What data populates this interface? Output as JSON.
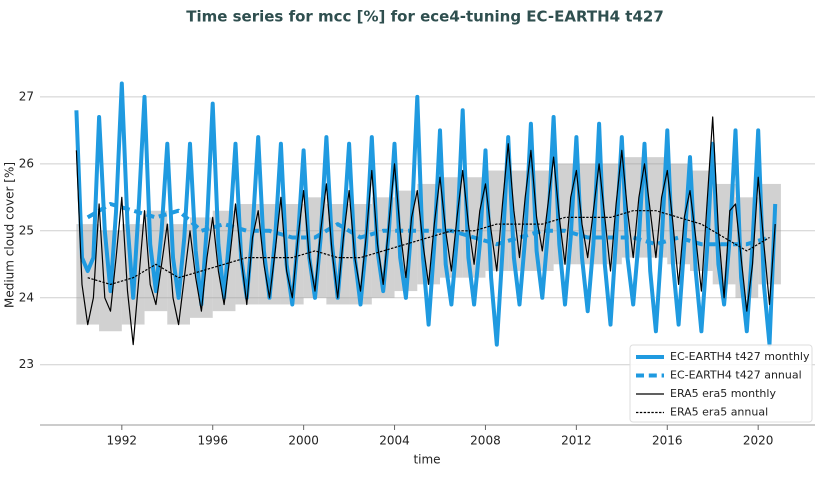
{
  "chart_data": {
    "type": "line",
    "title": "Time series for mcc [%] for ece4-tuning EC-EARTH4 t427",
    "xlabel": "time",
    "ylabel": "Medium cloud cover [%]",
    "xlim": [
      1988.4,
      2022.5
    ],
    "ylim": [
      22.1,
      27.7
    ],
    "xticks": [
      1992,
      1996,
      2000,
      2004,
      2008,
      2012,
      2016,
      2020
    ],
    "yticks": [
      23,
      24,
      25,
      26,
      27
    ],
    "grid": true,
    "legend": "lower right",
    "x": [
      1990,
      1990.25,
      1990.5,
      1990.75,
      1991,
      1991.25,
      1991.5,
      1991.75,
      1992,
      1992.25,
      1992.5,
      1992.75,
      1993,
      1993.25,
      1993.5,
      1993.75,
      1994,
      1994.25,
      1994.5,
      1994.75,
      1995,
      1995.25,
      1995.5,
      1995.75,
      1996,
      1996.25,
      1996.5,
      1996.75,
      1997,
      1997.25,
      1997.5,
      1997.75,
      1998,
      1998.25,
      1998.5,
      1998.75,
      1999,
      1999.25,
      1999.5,
      1999.75,
      2000,
      2000.25,
      2000.5,
      2000.75,
      2001,
      2001.25,
      2001.5,
      2001.75,
      2002,
      2002.25,
      2002.5,
      2002.75,
      2003,
      2003.25,
      2003.5,
      2003.75,
      2004,
      2004.25,
      2004.5,
      2004.75,
      2005,
      2005.25,
      2005.5,
      2005.75,
      2006,
      2006.25,
      2006.5,
      2006.75,
      2007,
      2007.25,
      2007.5,
      2007.75,
      2008,
      2008.25,
      2008.5,
      2008.75,
      2009,
      2009.25,
      2009.5,
      2009.75,
      2010,
      2010.25,
      2010.5,
      2010.75,
      2011,
      2011.25,
      2011.5,
      2011.75,
      2012,
      2012.25,
      2012.5,
      2012.75,
      2013,
      2013.25,
      2013.5,
      2013.75,
      2014,
      2014.25,
      2014.5,
      2014.75,
      2015,
      2015.25,
      2015.5,
      2015.75,
      2016,
      2016.25,
      2016.5,
      2016.75,
      2017,
      2017.25,
      2017.5,
      2017.75,
      2018,
      2018.25,
      2018.5,
      2018.75,
      2019,
      2019.25,
      2019.5,
      2019.75,
      2020,
      2020.25,
      2020.5,
      2020.75
    ],
    "series": [
      {
        "name": "EC-EARTH4 t427 monthly",
        "color": "#1f9ae0",
        "width": 4,
        "dash": false,
        "values": [
          26.8,
          24.6,
          24.4,
          24.6,
          26.7,
          25.0,
          24.1,
          25.3,
          27.2,
          25.1,
          24.0,
          25.4,
          27.0,
          24.8,
          24.1,
          25.0,
          26.3,
          24.6,
          24.0,
          24.9,
          26.3,
          24.7,
          23.9,
          25.1,
          26.9,
          24.8,
          24.0,
          25.0,
          26.3,
          24.6,
          24.0,
          25.0,
          26.4,
          24.7,
          24.0,
          24.9,
          26.3,
          24.5,
          23.9,
          24.9,
          26.2,
          24.6,
          24.0,
          24.9,
          26.4,
          24.8,
          24.0,
          25.0,
          26.3,
          24.6,
          23.9,
          24.8,
          26.4,
          24.7,
          24.1,
          25.0,
          26.3,
          24.6,
          24.0,
          25.1,
          27.0,
          24.6,
          23.6,
          24.8,
          26.5,
          24.5,
          23.9,
          24.9,
          26.8,
          24.6,
          23.9,
          24.8,
          26.2,
          24.3,
          23.3,
          24.7,
          26.4,
          24.6,
          23.9,
          24.9,
          26.6,
          24.7,
          24.0,
          25.0,
          26.7,
          24.8,
          23.9,
          24.9,
          26.4,
          24.6,
          23.8,
          24.8,
          26.6,
          24.5,
          23.6,
          24.9,
          26.4,
          24.6,
          23.9,
          24.9,
          26.3,
          24.4,
          23.5,
          24.8,
          26.5,
          24.5,
          23.6,
          24.8,
          26.1,
          24.4,
          23.5,
          24.7,
          26.3,
          24.5,
          23.9,
          24.9,
          26.5,
          24.3,
          23.5,
          24.8,
          26.5,
          24.2,
          23.3,
          25.4
        ]
      },
      {
        "name": "EC-EARTH4 t427 annual",
        "color": "#1f9ae0",
        "width": 4,
        "dash": true,
        "x": [
          1990.5,
          1991.5,
          1992.5,
          1993.5,
          1994.5,
          1995.5,
          1996.5,
          1997.5,
          1998.5,
          1999.5,
          2000.5,
          2001.5,
          2002.5,
          2003.5,
          2004.5,
          2005.5,
          2006.5,
          2007.5,
          2008.5,
          2009.5,
          2010.5,
          2011.5,
          2012.5,
          2013.5,
          2014.5,
          2015.5,
          2016.5,
          2017.5,
          2018.5,
          2019.5,
          2020.5
        ],
        "values": [
          25.2,
          25.4,
          25.3,
          25.2,
          25.3,
          25.0,
          25.1,
          25.0,
          25.0,
          24.9,
          24.9,
          25.1,
          24.9,
          25.0,
          25.0,
          25.0,
          25.0,
          24.9,
          24.8,
          24.9,
          25.0,
          25.0,
          24.9,
          24.9,
          24.9,
          24.8,
          24.9,
          24.8,
          24.8,
          24.8,
          24.9
        ]
      },
      {
        "name": "ERA5 era5 monthly",
        "color": "#000000",
        "width": 1.2,
        "dash": false,
        "values": [
          26.2,
          24.2,
          23.6,
          24.0,
          25.4,
          24.0,
          23.8,
          24.6,
          25.5,
          24.1,
          23.3,
          24.3,
          25.3,
          24.2,
          23.9,
          24.5,
          25.1,
          24.0,
          23.6,
          24.3,
          25.0,
          24.3,
          23.8,
          24.6,
          25.2,
          24.4,
          23.9,
          24.6,
          25.4,
          24.6,
          23.9,
          24.9,
          25.3,
          24.5,
          24.0,
          24.7,
          25.5,
          24.4,
          24.0,
          24.9,
          25.6,
          24.6,
          24.1,
          25.0,
          25.7,
          24.7,
          24.0,
          24.9,
          25.6,
          24.6,
          24.1,
          24.9,
          25.9,
          24.8,
          24.2,
          25.1,
          26.0,
          25.0,
          24.3,
          25.2,
          25.6,
          24.8,
          24.2,
          25.1,
          25.8,
          25.0,
          24.4,
          25.2,
          25.9,
          25.1,
          24.5,
          25.3,
          25.7,
          25.0,
          24.4,
          25.4,
          26.3,
          25.3,
          24.6,
          25.5,
          26.2,
          25.2,
          24.7,
          25.4,
          26.1,
          25.2,
          24.5,
          25.5,
          25.9,
          25.1,
          24.6,
          25.3,
          26.0,
          25.2,
          24.4,
          25.4,
          26.2,
          25.3,
          24.6,
          25.5,
          26.0,
          25.3,
          24.6,
          25.5,
          25.9,
          25.1,
          24.2,
          25.2,
          25.6,
          24.9,
          24.1,
          25.4,
          26.7,
          25.0,
          24.0,
          25.3,
          25.4,
          24.6,
          23.8,
          24.5,
          25.8,
          24.8,
          23.9,
          25.1
        ]
      },
      {
        "name": "ERA5 era5 annual",
        "color": "#000000",
        "width": 1.2,
        "dash": true,
        "x": [
          1990.5,
          1991.5,
          1992.5,
          1993.5,
          1994.5,
          1995.5,
          1996.5,
          1997.5,
          1998.5,
          1999.5,
          2000.5,
          2001.5,
          2002.5,
          2003.5,
          2004.5,
          2005.5,
          2006.5,
          2007.5,
          2008.5,
          2009.5,
          2010.5,
          2011.5,
          2012.5,
          2013.5,
          2014.5,
          2015.5,
          2016.5,
          2017.5,
          2018.5,
          2019.5,
          2020.5
        ],
        "values": [
          24.3,
          24.2,
          24.3,
          24.5,
          24.3,
          24.4,
          24.5,
          24.6,
          24.6,
          24.6,
          24.7,
          24.6,
          24.6,
          24.7,
          24.8,
          24.9,
          25.0,
          25.0,
          25.1,
          25.1,
          25.1,
          25.2,
          25.2,
          25.2,
          25.3,
          25.3,
          25.2,
          25.1,
          24.9,
          24.7,
          24.9
        ],
        "upper": [
          25.1,
          25.0,
          25.1,
          25.3,
          25.1,
          25.2,
          25.3,
          25.4,
          25.4,
          25.4,
          25.5,
          25.4,
          25.4,
          25.5,
          25.6,
          25.7,
          25.8,
          25.8,
          25.9,
          25.9,
          25.9,
          26.0,
          26.0,
          26.0,
          26.1,
          26.1,
          26.0,
          25.9,
          25.7,
          25.5,
          25.7
        ],
        "lower": [
          23.6,
          23.5,
          23.6,
          23.8,
          23.6,
          23.7,
          23.8,
          23.9,
          23.9,
          23.9,
          24.0,
          23.9,
          23.9,
          24.0,
          24.1,
          24.2,
          24.3,
          24.3,
          24.4,
          24.4,
          24.4,
          24.5,
          24.5,
          24.5,
          24.6,
          24.6,
          24.5,
          24.4,
          24.2,
          24.0,
          24.2
        ]
      }
    ]
  }
}
